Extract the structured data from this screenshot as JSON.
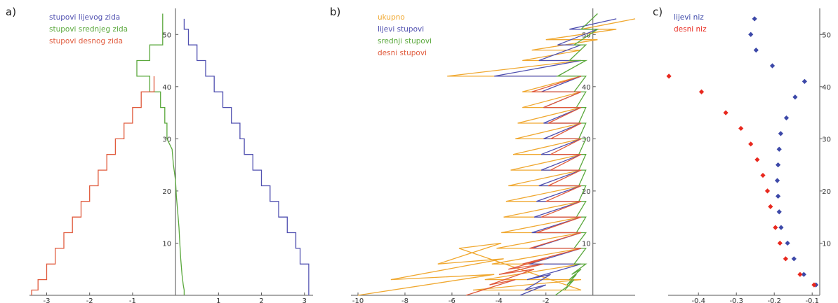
{
  "chart_data": [
    {
      "panel": "a)",
      "type": "line",
      "xlim": [
        -3.4,
        3.2
      ],
      "ylim": [
        0,
        55
      ],
      "xticks": [
        -3,
        -2,
        -1,
        1,
        2,
        3
      ],
      "yticks": [
        10,
        20,
        30,
        40,
        50
      ],
      "legend": [
        "stupovi lijevog zida",
        "stupovi srednjeg zida",
        "stupovi desnog zida"
      ],
      "series": [
        {
          "name": "stupovi lijevog zida",
          "color": "#5050b0",
          "x": [
            0.2,
            0.2,
            0.3,
            0.3,
            0.5,
            0.5,
            0.7,
            0.7,
            0.9,
            0.9,
            1.1,
            1.1,
            1.3,
            1.3,
            1.5,
            1.5,
            1.6,
            1.6,
            1.8,
            1.8,
            2.0,
            2.0,
            2.2,
            2.2,
            2.4,
            2.4,
            2.6,
            2.6,
            2.8,
            2.8,
            2.9,
            2.9,
            3.1,
            3.1
          ],
          "y": [
            53,
            51,
            51,
            48,
            48,
            45,
            45,
            42,
            42,
            39,
            39,
            36,
            36,
            33,
            33,
            30,
            30,
            27,
            27,
            24,
            24,
            21,
            21,
            18,
            18,
            15,
            15,
            12,
            12,
            9,
            9,
            6,
            6,
            0
          ]
        },
        {
          "name": "stupovi srednjeg zida",
          "color": "#5aa83c",
          "x": [
            -0.3,
            -0.3,
            -0.6,
            -0.6,
            -0.9,
            -0.9,
            -0.6,
            -0.6,
            -0.35,
            -0.35,
            -0.25,
            -0.25,
            -0.2,
            -0.2,
            -0.08,
            -0.05,
            0.0,
            0.02,
            0.05,
            0.08,
            0.1,
            0.12,
            0.15,
            0.18,
            0.2,
            0.2
          ],
          "y": [
            54,
            48,
            48,
            45,
            45,
            42,
            42,
            39,
            39,
            36,
            36,
            33,
            33,
            30,
            28,
            25,
            22,
            19,
            16,
            13,
            10,
            7,
            4,
            2,
            1,
            0
          ]
        },
        {
          "name": "stupovi desnog zida",
          "color": "#e05a3c",
          "x": [
            -0.5,
            -0.5,
            -0.8,
            -0.8,
            -1.0,
            -1.0,
            -1.2,
            -1.2,
            -1.4,
            -1.4,
            -1.6,
            -1.6,
            -1.8,
            -1.8,
            -2.0,
            -2.0,
            -2.2,
            -2.2,
            -2.4,
            -2.4,
            -2.6,
            -2.6,
            -2.8,
            -2.8,
            -3.0,
            -3.0,
            -3.2,
            -3.2,
            -3.35,
            -3.35
          ],
          "y": [
            42,
            39,
            39,
            36,
            36,
            33,
            33,
            30,
            30,
            27,
            27,
            24,
            24,
            21,
            21,
            18,
            18,
            15,
            15,
            12,
            12,
            9,
            9,
            6,
            6,
            3,
            3,
            1,
            1,
            0
          ]
        }
      ]
    },
    {
      "panel": "b)",
      "type": "line",
      "xlim": [
        -10.3,
        1.8
      ],
      "ylim": [
        0,
        55
      ],
      "xticks": [
        -10,
        -8,
        -6,
        -4,
        -2
      ],
      "yticks": [
        10,
        20,
        30,
        40,
        50
      ],
      "legend": [
        "ukupno",
        "lijevi stupovi",
        "srednji stupovi",
        "desni stupovi"
      ],
      "series": [
        {
          "name": "ukupno",
          "color": "#f0a830",
          "x": [
            1.8,
            -0.5,
            1.0,
            -2.0,
            0.2,
            -2.6,
            -0.5,
            -3.0,
            -0.5,
            -6.2,
            -0.5,
            -3.0,
            -0.5,
            -3.0,
            -0.5,
            -3.2,
            -0.5,
            -3.3,
            -0.5,
            -3.4,
            -0.5,
            -3.5,
            -0.5,
            -3.6,
            -0.5,
            -3.7,
            -0.5,
            -3.8,
            -0.5,
            -3.9,
            -0.5,
            -4.1,
            -0.5,
            -4.3,
            -0.5,
            -4.6,
            -0.5,
            -5.1,
            -0.5,
            -5.7,
            -3.9,
            -6.6,
            -3.8,
            -8.6,
            -4.2,
            -10.0
          ],
          "y": [
            53,
            51,
            51,
            49,
            49,
            47,
            47,
            45,
            45,
            42,
            42,
            39,
            39,
            36,
            36,
            33,
            33,
            30,
            30,
            27,
            27,
            24,
            24,
            21,
            21,
            18,
            18,
            15,
            15,
            12,
            12,
            9,
            9,
            6,
            6,
            3,
            3,
            1,
            1,
            9,
            10,
            6,
            7,
            3,
            4,
            0
          ]
        },
        {
          "name": "lijevi stupovi",
          "color": "#5050b0",
          "x": [
            1.0,
            -1.0,
            0.2,
            -1.5,
            -0.5,
            -2.3,
            -0.5,
            -4.2,
            -0.5,
            -2.2,
            -0.5,
            -2.1,
            -0.5,
            -2.1,
            -0.5,
            -2.1,
            -0.5,
            -2.2,
            -0.5,
            -2.2,
            -0.5,
            -2.3,
            -0.5,
            -2.4,
            -0.5,
            -2.5,
            -0.5,
            -2.6,
            -0.5,
            -2.6,
            -0.5,
            -2.7,
            -0.5,
            -2.8,
            -1.8,
            -2.9,
            -2.0,
            -3.1
          ],
          "y": [
            53,
            51,
            51,
            48,
            48,
            45,
            45,
            42,
            42,
            39,
            39,
            36,
            36,
            33,
            33,
            30,
            30,
            27,
            27,
            24,
            24,
            21,
            21,
            18,
            18,
            15,
            15,
            12,
            12,
            9,
            9,
            6,
            6,
            3,
            4,
            1,
            2,
            0
          ]
        },
        {
          "name": "srednji stupovi",
          "color": "#5aa83c",
          "x": [
            0.2,
            -0.5,
            0.2,
            -0.8,
            -0.3,
            -1.0,
            -0.3,
            -1.5,
            -0.3,
            -0.8,
            -0.3,
            -0.7,
            -0.3,
            -0.6,
            -0.3,
            -0.6,
            -0.3,
            -0.6,
            -0.3,
            -0.6,
            -0.3,
            -0.6,
            -0.3,
            -0.6,
            -0.3,
            -0.7,
            -0.3,
            -0.7,
            -0.3,
            -0.8,
            -0.3,
            -0.8,
            -0.3,
            -0.9,
            -0.5,
            -1.0,
            -0.7,
            -1.1,
            -0.8,
            -1.2,
            -1.0,
            -1.6
          ],
          "y": [
            54,
            51,
            51,
            48,
            48,
            45,
            45,
            42,
            42,
            39,
            39,
            36,
            36,
            33,
            33,
            30,
            30,
            27,
            27,
            24,
            24,
            21,
            21,
            18,
            18,
            15,
            15,
            12,
            12,
            9,
            9,
            6,
            6,
            4,
            5,
            3,
            4,
            2,
            3,
            1,
            2,
            0
          ]
        },
        {
          "name": "desni stupovi",
          "color": "#e05a3c",
          "x": [
            -0.5,
            -2.6,
            -0.5,
            -2.1,
            -0.5,
            -1.9,
            -0.5,
            -1.8,
            -0.5,
            -1.8,
            -0.5,
            -1.8,
            -0.5,
            -1.9,
            -0.5,
            -2.0,
            -0.5,
            -2.2,
            -0.5,
            -2.4,
            -0.5,
            -2.7,
            -0.5,
            -3.0,
            -2.0,
            -3.6,
            -2.1,
            -4.0,
            -2.5,
            -4.4,
            -3.3,
            -5.4
          ],
          "y": [
            42,
            39,
            39,
            36,
            36,
            33,
            33,
            30,
            30,
            27,
            27,
            24,
            24,
            21,
            21,
            18,
            18,
            15,
            15,
            12,
            12,
            9,
            9,
            6,
            7,
            5,
            6,
            4,
            5,
            2,
            3,
            0
          ]
        }
      ]
    },
    {
      "panel": "c)",
      "type": "scatter",
      "xlim": [
        -0.48,
        -0.08
      ],
      "ylim": [
        0,
        55
      ],
      "xticks": [
        -0.4,
        -0.3,
        -0.2,
        -0.1
      ],
      "yticks": [
        10,
        20,
        30,
        40,
        50
      ],
      "legend": [
        "lijevi niz",
        "desni niz"
      ],
      "series": [
        {
          "name": "lijevi niz",
          "color": "#3c48a8",
          "points": [
            [
              -0.252,
              53
            ],
            [
              -0.262,
              50
            ],
            [
              -0.248,
              47
            ],
            [
              -0.205,
              44
            ],
            [
              -0.12,
              41
            ],
            [
              -0.145,
              38
            ],
            [
              -0.168,
              34
            ],
            [
              -0.183,
              31
            ],
            [
              -0.187,
              28
            ],
            [
              -0.19,
              25
            ],
            [
              -0.192,
              22
            ],
            [
              -0.19,
              19
            ],
            [
              -0.187,
              16
            ],
            [
              -0.182,
              13
            ],
            [
              -0.165,
              10
            ],
            [
              -0.148,
              7
            ],
            [
              -0.122,
              4
            ],
            [
              -0.09,
              2
            ]
          ]
        },
        {
          "name": "desni niz",
          "color": "#e8281e",
          "points": [
            [
              -0.478,
              42
            ],
            [
              -0.392,
              39
            ],
            [
              -0.328,
              35
            ],
            [
              -0.288,
              32
            ],
            [
              -0.262,
              29
            ],
            [
              -0.245,
              26
            ],
            [
              -0.23,
              23
            ],
            [
              -0.218,
              20
            ],
            [
              -0.21,
              17
            ],
            [
              -0.197,
              13
            ],
            [
              -0.185,
              10
            ],
            [
              -0.17,
              7
            ],
            [
              -0.132,
              4
            ],
            [
              -0.095,
              2
            ]
          ]
        }
      ]
    }
  ]
}
